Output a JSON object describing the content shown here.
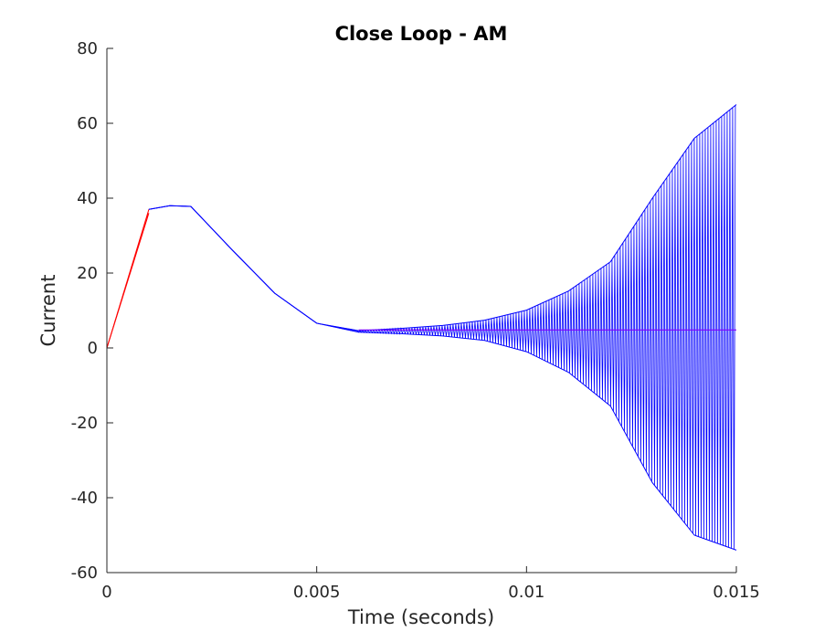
{
  "chart_data": {
    "type": "line",
    "title": "Close Loop - AM",
    "xlabel": "Time (seconds)",
    "ylabel": "Current",
    "xlim": [
      0,
      0.015
    ],
    "ylim": [
      -60,
      80
    ],
    "xticks": [
      0,
      0.005,
      0.01,
      0.015
    ],
    "xtick_labels": [
      "0",
      "0.005",
      "0.01",
      "0.015"
    ],
    "yticks": [
      -60,
      -40,
      -20,
      0,
      20,
      40,
      60,
      80
    ],
    "ytick_labels": [
      "-60",
      "-40",
      "-20",
      "0",
      "20",
      "40",
      "60",
      "80"
    ],
    "grid": false,
    "legend": "none",
    "series": [
      {
        "color": "#ff0000",
        "style": "carrier-oscillation",
        "x": [
          0,
          0.001
        ],
        "upper": [
          0,
          37
        ],
        "lower": [
          0,
          36
        ]
      },
      {
        "color": "#0000ff",
        "style": "oscillation-envelope",
        "x": [
          0.001,
          0.0015,
          0.002,
          0.003,
          0.004,
          0.005,
          0.006,
          0.007,
          0.008,
          0.009,
          0.01,
          0.011,
          0.012,
          0.013,
          0.014,
          0.015
        ],
        "upper": [
          37,
          38,
          37.8,
          26,
          14.6,
          6.6,
          4.6,
          5.2,
          6.0,
          7.4,
          10.1,
          15.2,
          23.0,
          40.0,
          56.0,
          65.0
        ],
        "lower": [
          37,
          38,
          37.8,
          26,
          14.6,
          6.6,
          4.2,
          3.8,
          3.2,
          2.0,
          -1.0,
          -6.5,
          -15.5,
          -36.0,
          -50.0,
          -54.0
        ]
      },
      {
        "color": "#7f00ff",
        "style": "line",
        "x": [
          0.006,
          0.015
        ],
        "y": [
          4.8,
          4.8
        ]
      }
    ]
  }
}
